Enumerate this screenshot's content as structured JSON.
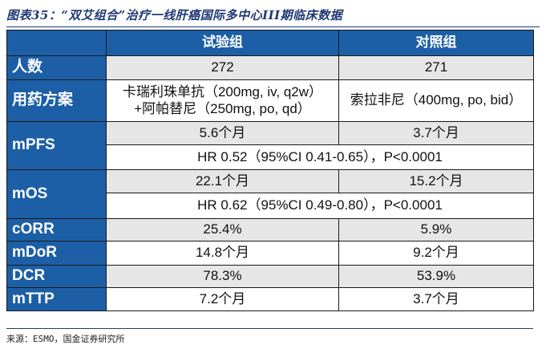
{
  "title": "图表35：“双艾组合”治疗一线肝癌国际多中心III期临床数据",
  "table": {
    "headers": [
      "",
      "试验组",
      "对照组"
    ],
    "rows": {
      "n": {
        "label": "人数",
        "exp": "272",
        "ctrl": "271"
      },
      "regimen": {
        "label": "用药方案",
        "exp_line1": "卡瑞利珠单抗（200mg, iv, q2w）",
        "exp_line2": "+阿帕替尼（250mg, po, qd）",
        "ctrl": "索拉非尼（400mg, po, bid）"
      },
      "mpfs": {
        "label": "mPFS",
        "exp": "5.6个月",
        "ctrl": "3.7个月",
        "hr": "HR 0.52（95%CI 0.41-0.65），P<0.0001"
      },
      "mos": {
        "label": "mOS",
        "exp": "22.1个月",
        "ctrl": "15.2个月",
        "hr": "HR 0.62（95%CI 0.49-0.80），P<0.0001"
      },
      "corr": {
        "label": "cORR",
        "exp": "25.4%",
        "ctrl": "5.9%"
      },
      "mdor": {
        "label": "mDoR",
        "exp": "14.8个月",
        "ctrl": "9.2个月"
      },
      "dcr": {
        "label": "DCR",
        "exp": "78.3%",
        "ctrl": "53.9%"
      },
      "mttp": {
        "label": "mTTP",
        "exp": "7.2个月",
        "ctrl": "3.7个月"
      }
    }
  },
  "source": "来源：ESMO，国金证券研究所",
  "colors": {
    "header_blue": "#1c5fa6",
    "row_gray": "#e6e6e6",
    "title_navy": "#1f3a73"
  }
}
